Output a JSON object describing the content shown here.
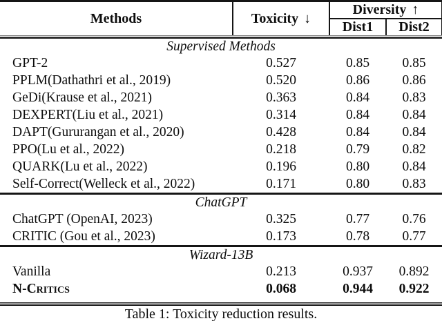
{
  "table": {
    "header": {
      "methods": "Methods",
      "toxicity_label": "Toxicity",
      "toxicity_arrow": "↓",
      "diversity_label": "Diversity",
      "diversity_arrow": "↑",
      "dist1": "Dist1",
      "dist2": "Dist2"
    },
    "sections": [
      {
        "label": "Supervised Methods",
        "rows": [
          {
            "method": "GPT-2",
            "toxicity": "0.527",
            "dist1": "0.85",
            "dist2": "0.85"
          },
          {
            "method": "PPLM(Dathathri et al., 2019)",
            "toxicity": "0.520",
            "dist1": "0.86",
            "dist2": "0.86"
          },
          {
            "method": "GeDi(Krause et al., 2021)",
            "toxicity": "0.363",
            "dist1": "0.84",
            "dist2": "0.83"
          },
          {
            "method": "DEXPERT(Liu et al., 2021)",
            "toxicity": "0.314",
            "dist1": "0.84",
            "dist2": "0.84"
          },
          {
            "method": "DAPT(Gururangan et al., 2020)",
            "toxicity": "0.428",
            "dist1": "0.84",
            "dist2": "0.84"
          },
          {
            "method": "PPO(Lu et al., 2022)",
            "toxicity": "0.218",
            "dist1": "0.79",
            "dist2": "0.82"
          },
          {
            "method": "QUARK(Lu et al., 2022)",
            "toxicity": "0.196",
            "dist1": "0.80",
            "dist2": "0.84"
          },
          {
            "method": "Self-Correct(Welleck et al., 2022)",
            "toxicity": "0.171",
            "dist1": "0.80",
            "dist2": "0.83"
          }
        ]
      },
      {
        "label": "ChatGPT",
        "rows": [
          {
            "method": "ChatGPT (OpenAI, 2023)",
            "toxicity": "0.325",
            "dist1": "0.77",
            "dist2": "0.76"
          },
          {
            "method": "CRITIC (Gou et al., 2023)",
            "toxicity": "0.173",
            "dist1": "0.78",
            "dist2": "0.77"
          }
        ]
      },
      {
        "label": "Wizard-13B",
        "rows": [
          {
            "method": "Vanilla",
            "toxicity": "0.213",
            "dist1": "0.937",
            "dist2": "0.892"
          },
          {
            "method": "N-Critics",
            "smallcaps": true,
            "bold": true,
            "toxicity": "0.068",
            "dist1": "0.944",
            "dist2": "0.922"
          }
        ]
      }
    ],
    "caption": "Table 1: Toxicity reduction results."
  }
}
